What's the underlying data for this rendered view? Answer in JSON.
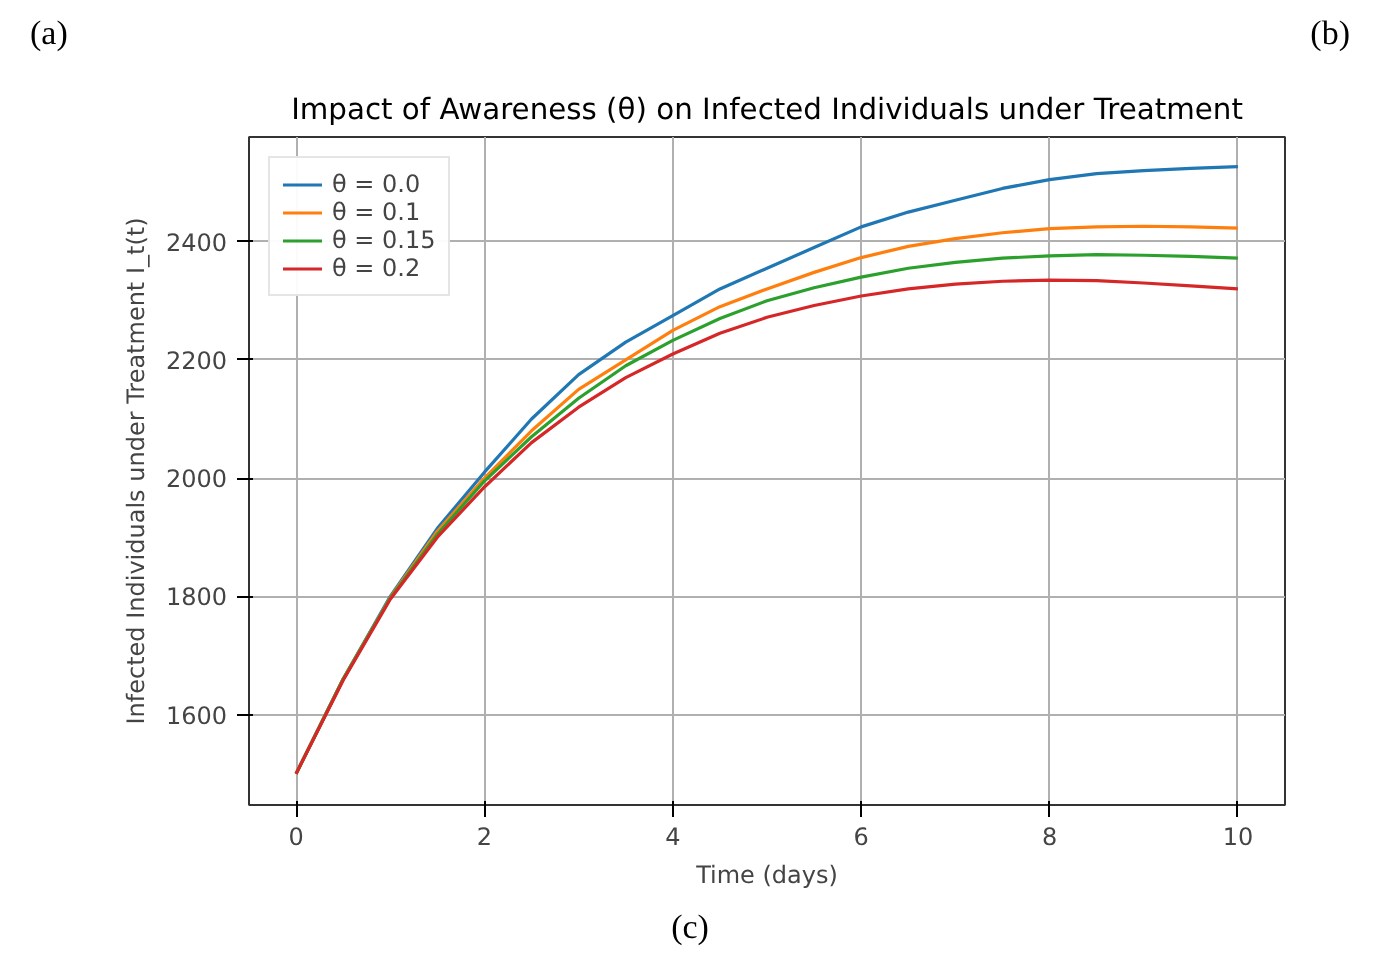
{
  "chart_data": {
    "type": "line",
    "title": "Impact of Awareness (θ) on Infected Individuals under Treatment",
    "xlabel": "Time (days)",
    "ylabel": "Infected Individuals under Treatment I_t(t)",
    "annotations": [
      "(a)",
      "(b)",
      "(c)"
    ],
    "x": [
      0,
      0.5,
      1,
      1.5,
      2,
      2.5,
      3,
      3.5,
      4,
      4.5,
      5,
      5.5,
      6,
      6.5,
      7,
      7.5,
      8,
      8.5,
      9,
      9.5,
      10
    ],
    "series": [
      {
        "name": "θ = 0.0",
        "color": "#1f77b4",
        "values": [
          1500,
          1660,
          1800,
          1915,
          2010,
          2100,
          2175,
          2230,
          2275,
          2320,
          2355,
          2390,
          2425,
          2450,
          2470,
          2490,
          2505,
          2515,
          2520,
          2524,
          2527
        ]
      },
      {
        "name": "θ = 0.1",
        "color": "#ff7f0e",
        "values": [
          1500,
          1660,
          1798,
          1910,
          2000,
          2080,
          2150,
          2200,
          2250,
          2290,
          2320,
          2348,
          2373,
          2392,
          2405,
          2415,
          2422,
          2425,
          2426,
          2425,
          2423
        ]
      },
      {
        "name": "θ = 0.15",
        "color": "#2ca02c",
        "values": [
          1500,
          1660,
          1797,
          1905,
          1995,
          2070,
          2135,
          2190,
          2233,
          2270,
          2300,
          2322,
          2340,
          2355,
          2365,
          2372,
          2376,
          2378,
          2377,
          2375,
          2372
        ]
      },
      {
        "name": "θ = 0.2",
        "color": "#d62728",
        "values": [
          1500,
          1658,
          1795,
          1900,
          1985,
          2060,
          2120,
          2170,
          2210,
          2245,
          2272,
          2292,
          2308,
          2320,
          2328,
          2333,
          2335,
          2334,
          2330,
          2325,
          2320
        ]
      }
    ],
    "xlim": [
      -0.5,
      10.5
    ],
    "ylim": [
      1447,
      2577
    ],
    "xticks": [
      0,
      2,
      4,
      6,
      8,
      10
    ],
    "yticks": [
      1600,
      1800,
      2000,
      2200,
      2400
    ],
    "grid": true,
    "legend": "top left",
    "line_style": "solid"
  }
}
